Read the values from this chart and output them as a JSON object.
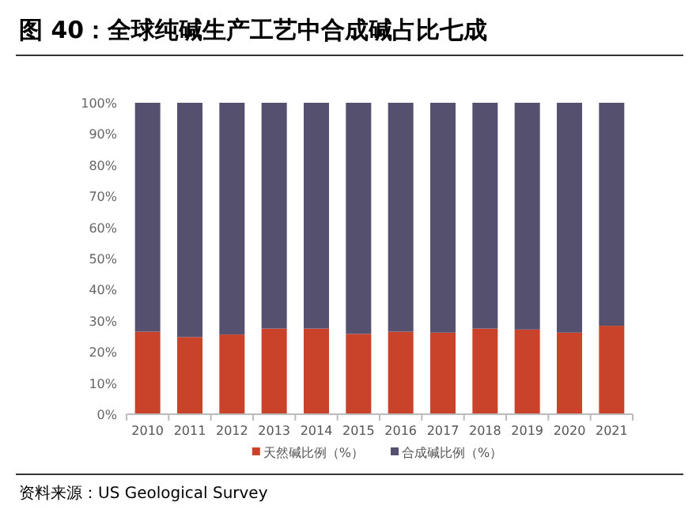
{
  "chart_data": {
    "type": "bar",
    "stacked": true,
    "title": "图 40：全球纯碱生产工艺中合成碱占比七成",
    "categories": [
      "2010",
      "2011",
      "2012",
      "2013",
      "2014",
      "2015",
      "2016",
      "2017",
      "2018",
      "2019",
      "2020",
      "2021"
    ],
    "series": [
      {
        "name": "天然碱比例（%）",
        "color": "#c8432a",
        "values": [
          26.5,
          24.8,
          25.6,
          27.5,
          27.5,
          25.8,
          26.5,
          26.2,
          27.5,
          27.2,
          26.2,
          28.4
        ]
      },
      {
        "name": "合成碱比例（%）",
        "color": "#56506f",
        "values": [
          73.5,
          75.2,
          74.4,
          72.5,
          72.5,
          74.2,
          73.5,
          73.8,
          72.5,
          72.8,
          73.8,
          71.6
        ]
      }
    ],
    "ylim": [
      0,
      100
    ],
    "yticks": [
      {
        "value": 0,
        "label": "0%"
      },
      {
        "value": 10,
        "label": "10%"
      },
      {
        "value": 20,
        "label": "20%"
      },
      {
        "value": 30,
        "label": "30%"
      },
      {
        "value": 40,
        "label": "40%"
      },
      {
        "value": 50,
        "label": "50%"
      },
      {
        "value": 60,
        "label": "60%"
      },
      {
        "value": 70,
        "label": "70%"
      },
      {
        "value": 80,
        "label": "80%"
      },
      {
        "value": 90,
        "label": "90%"
      },
      {
        "value": 100,
        "label": "100%"
      }
    ],
    "grid": false,
    "legend": "bottom",
    "annotations": [
      "资料来源：US Geological Survey"
    ]
  }
}
